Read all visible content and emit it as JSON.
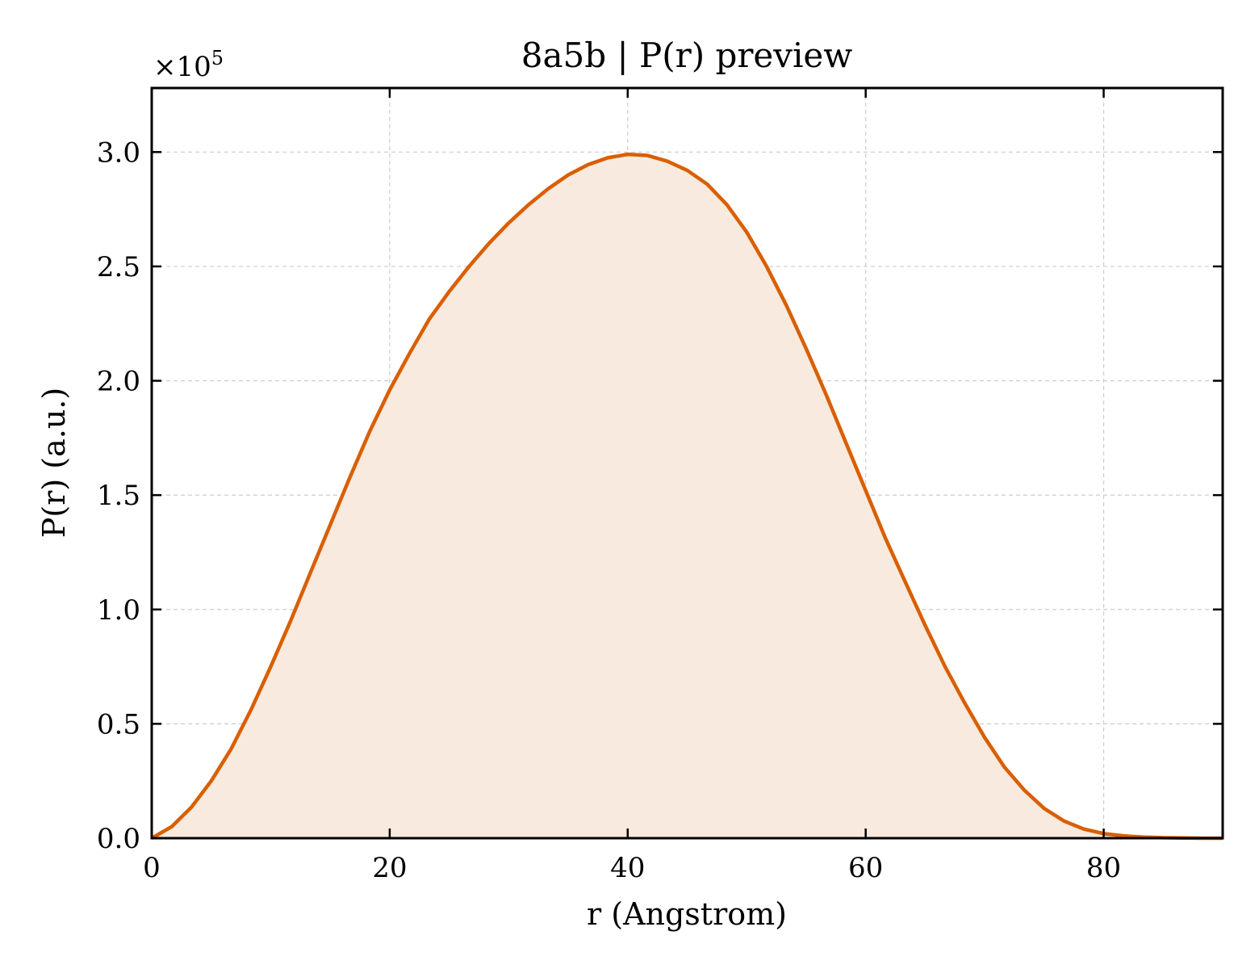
{
  "chart_data": {
    "type": "area",
    "title": "8a5b | P(r) preview",
    "xlabel": "r (Angstrom)",
    "ylabel": "P(r) (a.u.)",
    "y_multiplier": "×10",
    "y_multiplier_exponent": "5",
    "xlim": [
      0,
      90
    ],
    "ylim": [
      0,
      3.28
    ],
    "x_ticks": [
      0,
      20,
      40,
      60,
      80
    ],
    "x_tick_labels": [
      "0",
      "20",
      "40",
      "60",
      "80"
    ],
    "y_ticks": [
      0.0,
      0.5,
      1.0,
      1.5,
      2.0,
      2.5,
      3.0
    ],
    "y_tick_labels": [
      "0.0",
      "0.5",
      "1.0",
      "1.5",
      "2.0",
      "2.5",
      "3.0"
    ],
    "grid": true,
    "fill": true,
    "series": [
      {
        "x": [
          0,
          1.67,
          3.33,
          5.0,
          6.67,
          8.33,
          10.0,
          11.67,
          13.33,
          15.0,
          16.67,
          18.33,
          20.0,
          21.67,
          23.33,
          25.0,
          26.67,
          28.33,
          30.0,
          31.67,
          33.33,
          35.0,
          36.67,
          38.33,
          40.0,
          41.67,
          43.33,
          45.0,
          46.67,
          48.33,
          50.0,
          51.67,
          53.33,
          55.0,
          56.67,
          58.33,
          60.0,
          61.67,
          63.33,
          65.0,
          66.67,
          68.33,
          70.0,
          71.67,
          73.33,
          75.0,
          76.67,
          78.33,
          80.0,
          81.67,
          83.33,
          85.0,
          86.67,
          88.33,
          90.0
        ],
        "values": [
          0.0,
          0.05,
          0.135,
          0.25,
          0.39,
          0.56,
          0.75,
          0.95,
          1.16,
          1.37,
          1.58,
          1.78,
          1.96,
          2.12,
          2.27,
          2.39,
          2.5,
          2.6,
          2.69,
          2.77,
          2.84,
          2.9,
          2.945,
          2.975,
          2.99,
          2.985,
          2.96,
          2.92,
          2.86,
          2.77,
          2.65,
          2.5,
          2.33,
          2.14,
          1.94,
          1.73,
          1.52,
          1.31,
          1.12,
          0.93,
          0.75,
          0.59,
          0.44,
          0.31,
          0.21,
          0.13,
          0.075,
          0.04,
          0.02,
          0.01,
          0.005,
          0.002,
          0.001,
          0.0,
          0.0
        ]
      }
    ],
    "colors": {
      "line": "#d95f02",
      "fill": "#f8eade",
      "grid": "#cccccc",
      "axes": "#000000"
    }
  }
}
